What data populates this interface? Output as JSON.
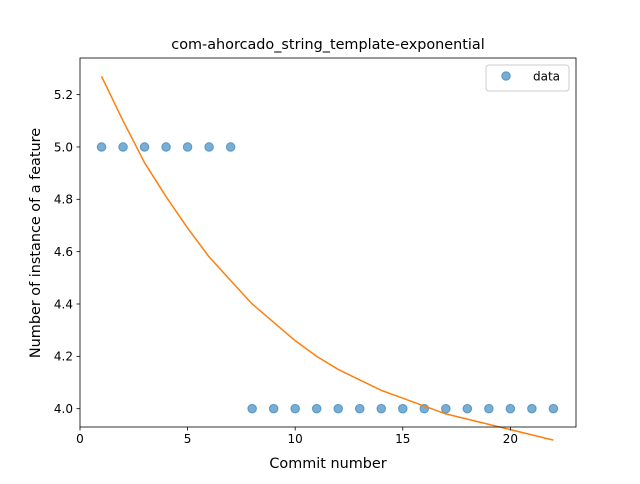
{
  "chart_data": {
    "type": "scatter",
    "title": "com-ahorcado_string_template-exponential",
    "xlabel": "Commit number",
    "ylabel": "Number of instance of a feature",
    "xlim": [
      0,
      23.05
    ],
    "ylim": [
      3.93,
      5.34
    ],
    "xticks": [
      0,
      5,
      10,
      15,
      20
    ],
    "yticks": [
      4.0,
      4.2,
      4.4,
      4.6,
      4.8,
      5.0,
      5.2
    ],
    "grid": false,
    "legend_position": "top-right",
    "series": [
      {
        "name": "data",
        "kind": "scatter",
        "color": "#1f77b4",
        "x": [
          1,
          2,
          3,
          4,
          5,
          6,
          7,
          8,
          9,
          10,
          11,
          12,
          13,
          14,
          15,
          16,
          17,
          18,
          19,
          20,
          21,
          22
        ],
        "y": [
          5,
          5,
          5,
          5,
          5,
          5,
          5,
          4,
          4,
          4,
          4,
          4,
          4,
          4,
          4,
          4,
          4,
          4,
          4,
          4,
          4,
          4
        ]
      },
      {
        "kind": "line",
        "color": "#ff7f0e",
        "x": [
          1,
          2,
          3,
          4,
          5,
          6,
          7,
          8,
          9,
          10,
          11,
          12,
          13,
          14,
          15,
          16,
          17,
          18,
          19,
          20,
          21,
          22
        ],
        "y": [
          5.27,
          5.1,
          4.94,
          4.81,
          4.69,
          4.58,
          4.49,
          4.4,
          4.33,
          4.26,
          4.2,
          4.15,
          4.11,
          4.07,
          4.04,
          4.01,
          3.98,
          3.96,
          3.94,
          3.92,
          3.9,
          3.88
        ]
      }
    ]
  }
}
